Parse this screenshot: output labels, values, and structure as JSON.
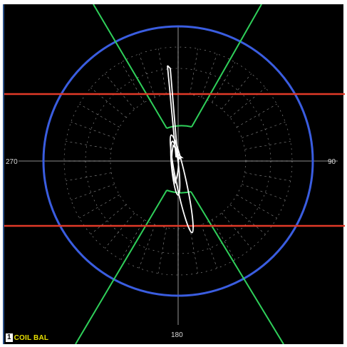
{
  "display": {
    "channel": "1",
    "mode_label": "COIL BAL",
    "labels": {
      "top": "",
      "right": "90",
      "bottom": "180",
      "left": "270"
    },
    "colors": {
      "background": "#000000",
      "circle": "#3a5de0",
      "limit_lines": "#e03a28",
      "wedge_lines": "#2fd05a",
      "grid": "#bdbdbd",
      "trace": "#ffffff",
      "mode_label": "#e8e000"
    }
  }
}
